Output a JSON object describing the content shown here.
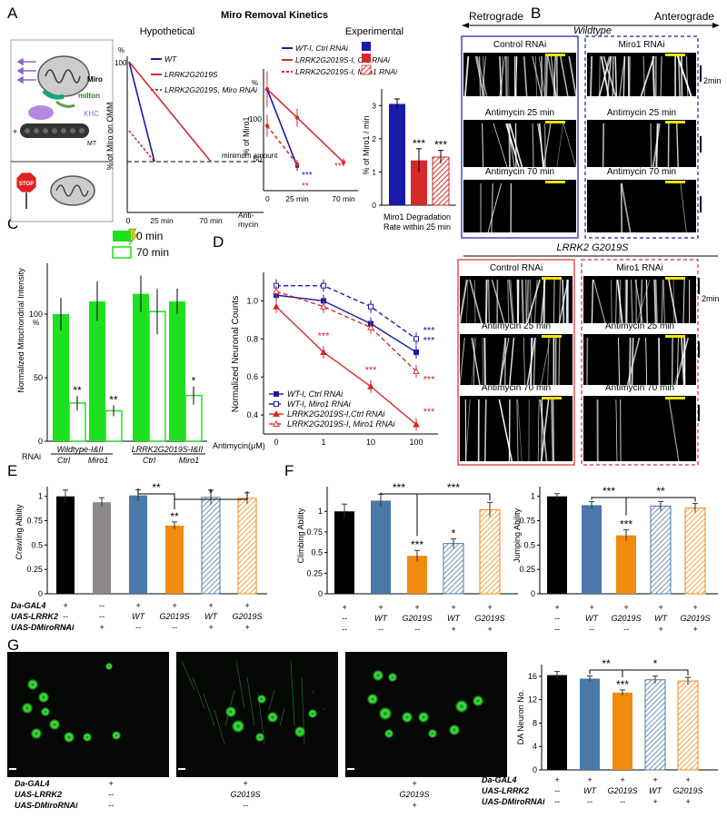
{
  "colors": {
    "wt": "#1a1aaa",
    "lrrk": "#d42a2a",
    "green": "#1ee11e",
    "steel": "#4a78a8",
    "orange": "#f08a10",
    "gray": "#8c8888"
  },
  "panels": {
    "A": "A",
    "B": "B",
    "C": "C",
    "D": "D",
    "E": "E",
    "F": "F",
    "G": "G"
  },
  "A": {
    "main_title": "Miro Removal Kinetics",
    "hyp_title": "Hypothetical",
    "exp_title": "Experimental",
    "schematic": {
      "miro": "Miro",
      "milton": "milton",
      "khc": "KHC",
      "mt": "MT",
      "stop": "STOP",
      "plus": "+"
    },
    "hyp": {
      "ylabel": "% of Miro on OMM",
      "y_top": "100",
      "pct": "%",
      "x_ticks": [
        "0",
        "25 min",
        "70 min"
      ],
      "legend": [
        "WT",
        "LRRK2G2019S",
        "LRRK2G2019S, Miro RNAi"
      ],
      "annotation": "minimum amount",
      "chart_data": {
        "type": "line",
        "x": [
          0,
          25,
          70
        ],
        "series": [
          {
            "name": "WT",
            "values": [
              100,
              null,
              null
            ],
            "end": [
              25,
              30
            ]
          },
          {
            "name": "LRRK2G2019S",
            "values": [
              100,
              null,
              30
            ]
          },
          {
            "name": "LRRK2G2019S, Miro RNAi",
            "values": [
              70,
              30,
              null
            ]
          }
        ]
      }
    },
    "exp": {
      "ylabel": "% of Miro1",
      "pct": "%",
      "y_ticks": [
        "100",
        "50"
      ],
      "x_ticks": [
        "0",
        "25 min",
        "70 min"
      ],
      "xlabel": "Anti-\nmycin",
      "legend": [
        "WT-I, Ctrl RNAi",
        "LRRK2G2019S-I, Ctrl RNAi",
        "LRRK2G2019S-I, Miro1 RNAi"
      ],
      "sig": {
        "wt25": "***",
        "rnai25": "**",
        "lrrk70": "***"
      },
      "chart_data": {
        "type": "line",
        "x": [
          0,
          25,
          70
        ],
        "ylim": [
          0,
          120
        ],
        "series": [
          {
            "name": "WT-I, Ctrl RNAi",
            "values": [
              100,
              24,
              null
            ]
          },
          {
            "name": "LRRK2G2019S-I, Ctrl RNAi",
            "values": [
              100,
              72,
              28
            ]
          },
          {
            "name": "LRRK2G2019S-I, Miro1 RNAi",
            "values": [
              64,
              26,
              null
            ]
          }
        ]
      }
    },
    "rate": {
      "ylabel": "% of Miro1 / min",
      "y_ticks": [
        "3",
        "2",
        "1",
        "0"
      ],
      "caption1": "Miro1 Degradation",
      "caption2": "Rate within 25 min",
      "sig": [
        "***",
        "***"
      ],
      "chart_data": {
        "type": "bar",
        "categories": [
          "WT-I, Ctrl RNAi",
          "LRRK2G2019S-I, Ctrl RNAi",
          "LRRK2G2019S-I, Miro1 RNAi"
        ],
        "values": [
          3.05,
          1.35,
          1.45
        ],
        "ylim": [
          0,
          3.5
        ]
      }
    }
  },
  "B": {
    "retro": "Retrograde",
    "antero": "Anterograde",
    "wildtype": "Wildtype",
    "lrrk": "LRRK2 G2019S",
    "ctrl": "Control RNAi",
    "miro": "Miro1 RNAi",
    "anti25": "Antimycin 25 min",
    "anti70": "Antimycin 70 min",
    "scale": "2min"
  },
  "C": {
    "ylabel": "Normalized Mitochondrial Intensity",
    "pct": "%",
    "y_ticks": [
      "100",
      "50",
      "0"
    ],
    "legend": [
      "0 min",
      "70 min"
    ],
    "rnai": "RNAi",
    "groups": [
      "Wildtype-I&II",
      "LRRK2G2019S-I&II"
    ],
    "xcats": [
      "Ctrl",
      "Miro1",
      "Ctrl",
      "Miro1"
    ],
    "sig": [
      "**",
      "**",
      "*"
    ],
    "chart_data": {
      "type": "bar",
      "categories": [
        "Wildtype Ctrl",
        "Wildtype Miro1",
        "LRRK2G2019S Ctrl",
        "LRRK2G2019S Miro1"
      ],
      "series": [
        {
          "name": "0 min",
          "values": [
            100,
            110,
            116,
            110
          ]
        },
        {
          "name": "70 min",
          "values": [
            30,
            24,
            102,
            36
          ]
        }
      ],
      "ylim": [
        0,
        140
      ]
    }
  },
  "D": {
    "ylabel": "Normalized Neuronal Counts",
    "xlabel": "Antimycin(μM)",
    "y_ticks": [
      "1.0",
      "0.8",
      "0.6",
      "0.4"
    ],
    "x_ticks": [
      "0",
      "1",
      "10",
      "100"
    ],
    "legend": [
      "WT-I, Ctrl RNAi",
      "WT-I, Miro1 RNAi",
      "LRRK2G2019S-I,Ctrl RNAi",
      "LRRK2G2019S-I, Miro1 RNAi"
    ],
    "sig_blue": [
      "***",
      "***"
    ],
    "sig_red": [
      "***",
      "***",
      "***",
      "***"
    ],
    "chart_data": {
      "type": "line",
      "x": [
        0,
        1,
        10,
        100
      ],
      "ylim": [
        0.3,
        1.15
      ],
      "series": [
        {
          "name": "WT-I, Ctrl RNAi",
          "values": [
            1.03,
            1.0,
            0.88,
            0.73
          ]
        },
        {
          "name": "WT-I, Miro1 RNAi",
          "values": [
            1.08,
            1.08,
            0.97,
            0.8
          ]
        },
        {
          "name": "LRRK2G2019S-I,Ctrl RNAi",
          "values": [
            0.97,
            0.73,
            0.55,
            0.35
          ]
        },
        {
          "name": "LRRK2G2019S-I, Miro1 RNAi",
          "values": [
            1.05,
            0.97,
            0.86,
            0.63
          ]
        }
      ]
    }
  },
  "E": {
    "ylabel": "Crawling Ability",
    "y_ticks": [
      "1",
      "0.75",
      "0.5",
      "0.25",
      "0"
    ],
    "sig_top": [
      "**",
      "*"
    ],
    "sig_bar": "**",
    "chart_data": {
      "type": "bar",
      "values": [
        1.0,
        0.94,
        1.01,
        0.7,
        0.99,
        0.98
      ],
      "ylim": [
        0,
        1.1
      ]
    },
    "rows": [
      {
        "label": "Da-GAL4",
        "cells": [
          "+",
          "--",
          "+",
          "+",
          "+",
          "+"
        ]
      },
      {
        "label": "UAS-LRRK2",
        "cells": [
          "--",
          "--",
          "WT",
          "G2019S",
          "WT",
          "G2019S"
        ]
      },
      {
        "label": "UAS-DMiroRNAi",
        "cells": [
          "--",
          "+",
          "--",
          "--",
          "+",
          "+"
        ]
      }
    ]
  },
  "F": {
    "climb_ylabel": "Climbing Ability",
    "climb_ticks": [
      "1",
      "0.75",
      "0.5",
      "0.25",
      "0"
    ],
    "climb_sig_top": [
      "***",
      "***"
    ],
    "climb_sig_bar": [
      "***",
      "*"
    ],
    "climb": {
      "chart_data": {
        "type": "bar",
        "values": [
          1.0,
          1.13,
          0.46,
          0.61,
          1.02
        ],
        "ylim": [
          0,
          1.3
        ]
      }
    },
    "jump_ylabel": "Jumping Ability",
    "jump_ticks": [
      "1",
      "0.75",
      "0.5",
      "0.25",
      "0"
    ],
    "jump_sig_top": [
      "***",
      "**"
    ],
    "jump_sig_bar": "***",
    "jump": {
      "chart_data": {
        "type": "bar",
        "values": [
          1.0,
          0.91,
          0.6,
          0.9,
          0.88
        ],
        "ylim": [
          0,
          1.1
        ]
      }
    },
    "rows_climb": [
      [
        "+",
        "+",
        "+",
        "+",
        "+"
      ],
      [
        "--",
        "WT",
        "G2019S",
        "WT",
        "G2019S"
      ],
      [
        "--",
        "--",
        "--",
        "+",
        "+"
      ]
    ],
    "rows_jump": [
      [
        "+",
        "+",
        "+",
        "+",
        "+"
      ],
      [
        "--",
        "WT",
        "G2019S",
        "WT",
        "G2019S"
      ],
      [
        "--",
        "--",
        "--",
        "+",
        "+"
      ]
    ]
  },
  "G": {
    "ylabel": "DA Neuron No.",
    "y_ticks": [
      "16",
      "12",
      "8",
      "4",
      "0"
    ],
    "sig_top": [
      "**",
      "*"
    ],
    "sig_bar": "***",
    "chart_data": {
      "type": "bar",
      "values": [
        16.2,
        15.6,
        13.2,
        15.4,
        15.2
      ],
      "ylim": [
        0,
        18
      ]
    },
    "img_rows": [
      {
        "label": "Da-GAL4",
        "cells": [
          "+",
          "+",
          "+"
        ]
      },
      {
        "label": "UAS-LRRK2",
        "cells": [
          "--",
          "G2019S",
          "G2019S"
        ]
      },
      {
        "label": "UAS-DMiroRNAi",
        "cells": [
          "--",
          "--",
          "+"
        ]
      }
    ],
    "rows": [
      {
        "label": "Da-GAL4",
        "cells": [
          "+",
          "+",
          "+",
          "+",
          "+"
        ]
      },
      {
        "label": "UAS-LRRK2",
        "cells": [
          "--",
          "WT",
          "G2019S",
          "WT",
          "G2019S"
        ]
      },
      {
        "label": "UAS-DMiroRNAi",
        "cells": [
          "--",
          "--",
          "--",
          "+",
          "+"
        ]
      }
    ]
  }
}
